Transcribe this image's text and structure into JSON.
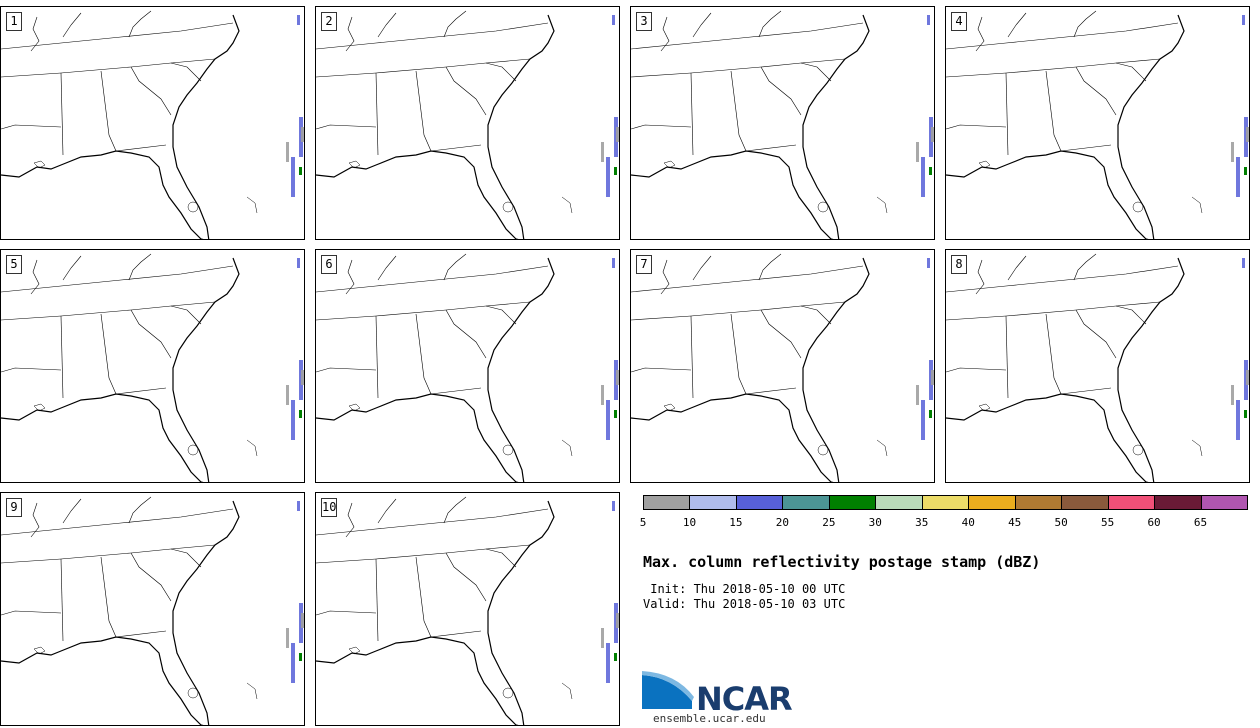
{
  "panels": [
    {
      "label": "1"
    },
    {
      "label": "2"
    },
    {
      "label": "3"
    },
    {
      "label": "4"
    },
    {
      "label": "5"
    },
    {
      "label": "6"
    },
    {
      "label": "7"
    },
    {
      "label": "8"
    },
    {
      "label": "9"
    },
    {
      "label": "10"
    }
  ],
  "colorbar": {
    "colors": [
      "#a0a0a0",
      "#b0bcec",
      "#5760d8",
      "#4c9595",
      "#008000",
      "#b9dbb9",
      "#ecdc68",
      "#ebae1e",
      "#b07a32",
      "#8a5a3c",
      "#f05078",
      "#6a1a36",
      "#b056b0"
    ],
    "labels": [
      "5",
      "10",
      "15",
      "20",
      "25",
      "30",
      "35",
      "40",
      "45",
      "50",
      "55",
      "60",
      "65"
    ]
  },
  "title": "Max. column reflectivity postage stamp (dBZ)",
  "init_text": " Init: Thu 2018-05-10 00 UTC",
  "valid_text": "Valid: Thu 2018-05-10 03 UTC",
  "logo": {
    "name": "NCAR",
    "url": "ensemble.ucar.edu"
  }
}
